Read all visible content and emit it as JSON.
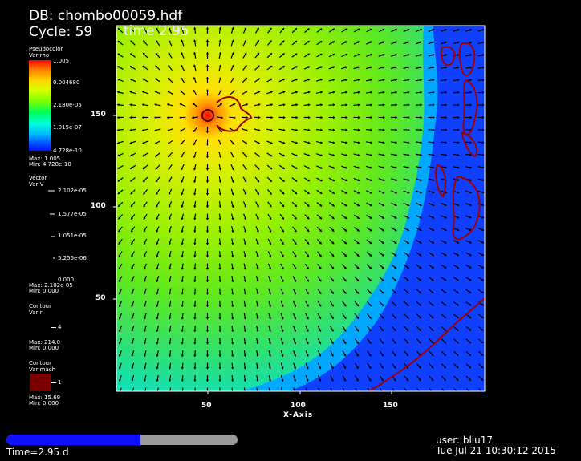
{
  "header": {
    "db": "DB: chombo00059.hdf",
    "cycle": "Cycle: 59",
    "time": "time 2.95"
  },
  "legend": {
    "pseudocolor": {
      "title": "Pseudocolor",
      "var": "Var:rho",
      "ticks": [
        "1.005",
        "0.004680",
        "2.180e-05",
        "1.015e-07",
        "4.728e-10"
      ],
      "max": "Max: 1.005",
      "min": "Min: 4.728e-10"
    },
    "vector": {
      "title": "Vector",
      "var": "Var:V",
      "ticks": [
        "2.102e-05",
        "1.577e-05",
        "1.051e-05",
        "5.255e-06",
        "0.000"
      ],
      "max": "Max: 2.102e-05",
      "min": "Min: 0.000"
    },
    "contour_r": {
      "title": "Contour",
      "var": "Var:r",
      "level": "4",
      "max": "Max: 214.0",
      "min": "Min: 0.000"
    },
    "contour_mach": {
      "title": "Contour",
      "var": "Var:mach",
      "level": "1",
      "max": "Max: 15.69",
      "min": "Min: 0.000"
    }
  },
  "axes": {
    "xlabel": "X-Axis",
    "xticks": [
      "50",
      "100",
      "150"
    ],
    "yticks": [
      "150",
      "100",
      "50"
    ]
  },
  "status": {
    "time": "Time=2.95 d",
    "user": "user: bliu17",
    "date": "Tue Jul 21 10:30:12 2015",
    "progress": 0.58
  },
  "colors": {
    "background": "#000000",
    "contour": "#a00000",
    "progress_fill": "#1010ff",
    "progress_track": "#9a9a9a"
  }
}
